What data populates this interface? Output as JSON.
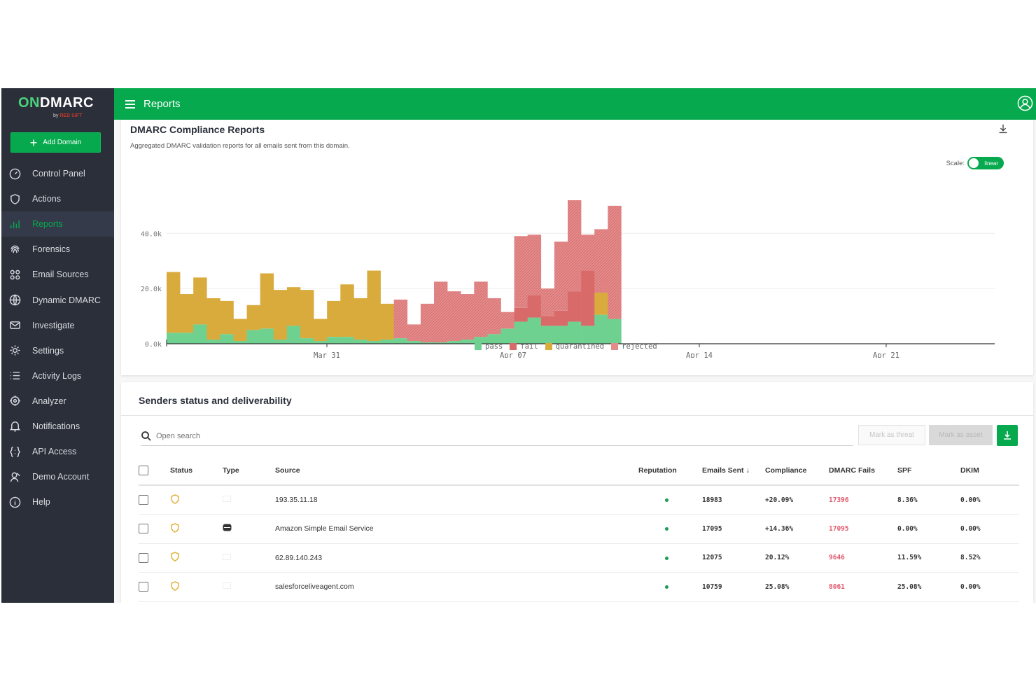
{
  "app": {
    "logo": {
      "on": "ON",
      "rest": "DMARC",
      "by": "by",
      "company": "RED SIFT"
    },
    "add_domain_label": "Add Domain",
    "topbar_title": "Reports"
  },
  "sidebar": {
    "items": [
      {
        "label": "Control Panel",
        "icon": "gauge-icon",
        "active": false
      },
      {
        "label": "Actions",
        "icon": "shield-icon",
        "active": false
      },
      {
        "label": "Reports",
        "icon": "bar-chart-icon",
        "active": true
      },
      {
        "label": "Forensics",
        "icon": "fingerprint-icon",
        "active": false
      },
      {
        "label": "Email Sources",
        "icon": "grid-icon",
        "active": false
      },
      {
        "label": "Dynamic DMARC",
        "icon": "globe-icon",
        "active": false
      },
      {
        "label": "Investigate",
        "icon": "envelope-icon",
        "active": false
      },
      {
        "label": "Settings",
        "icon": "gear-icon",
        "active": false
      },
      {
        "label": "Activity Logs",
        "icon": "list-icon",
        "active": false
      },
      {
        "label": "Analyzer",
        "icon": "target-icon",
        "active": false
      },
      {
        "label": "Notifications",
        "icon": "bell-icon",
        "active": false
      },
      {
        "label": "API Access",
        "icon": "braces-icon",
        "active": false
      },
      {
        "label": "Demo Account",
        "icon": "user-icon",
        "active": false
      },
      {
        "label": "Help",
        "icon": "info-icon",
        "active": false
      }
    ]
  },
  "compliance": {
    "title": "DMARC Compliance Reports",
    "subtitle": "Aggregated DMARC validation reports for all emails sent from this domain.",
    "scale_label": "Scale:",
    "scale_value": "linear"
  },
  "chart_data": {
    "type": "bar",
    "stacked": true,
    "x_tick_labels": [
      "Mar 31",
      "Apr 07",
      "Apr 14",
      "Apr 21"
    ],
    "y_tick_labels": [
      "0.0k",
      "20.0k",
      "40.0k"
    ],
    "ylim": [
      0,
      52000
    ],
    "legend": [
      "pass",
      "fail",
      "quarantined",
      "rejected"
    ],
    "colors": {
      "pass": "#6fd18f",
      "fail": "#d96a6a",
      "quarantined": "#d9aa3c",
      "rejected": "#e48b8b"
    },
    "series": [
      {
        "name": "pass",
        "values": [
          4000,
          4000,
          7000,
          1500,
          3500,
          1000,
          5000,
          5500,
          1500,
          6500,
          2000,
          1000,
          2500,
          2500,
          1500,
          1000,
          1500,
          2000,
          1000,
          500,
          500,
          1000,
          1500,
          2500,
          3500,
          5500,
          8000,
          9500,
          6500,
          6500,
          8000,
          6500,
          10500,
          9000
        ]
      },
      {
        "name": "fail",
        "values": [
          0,
          0,
          0,
          0,
          0,
          0,
          0,
          0,
          0,
          0,
          0,
          0,
          0,
          0,
          0,
          0,
          0,
          0,
          0,
          0,
          0,
          0,
          0,
          0,
          0,
          0,
          5000,
          8000,
          3500,
          5500,
          11000,
          20000,
          0,
          0
        ]
      },
      {
        "name": "quarantined",
        "values": [
          22000,
          14000,
          17000,
          15000,
          12000,
          8000,
          9000,
          20000,
          18000,
          14000,
          17500,
          8000,
          13000,
          19000,
          15000,
          25500,
          13000,
          0,
          0,
          0,
          0,
          0,
          0,
          0,
          0,
          0,
          0,
          0,
          0,
          0,
          0,
          0,
          8000,
          0
        ]
      },
      {
        "name": "rejected",
        "values": [
          0,
          0,
          0,
          0,
          0,
          0,
          0,
          0,
          0,
          0,
          0,
          0,
          0,
          0,
          0,
          0,
          0,
          14000,
          6000,
          14000,
          22000,
          18000,
          16500,
          20000,
          13000,
          6000,
          26000,
          22000,
          10000,
          25000,
          33000,
          13000,
          23000,
          41000
        ]
      }
    ]
  },
  "senders": {
    "title": "Senders status and deliverability",
    "search_placeholder": "Open search",
    "mark_threat_label": "Mark as threat",
    "mark_asset_label": "Mark as asset",
    "columns": {
      "status": "Status",
      "type": "Type",
      "source": "Source",
      "reputation": "Reputation",
      "emails_sent": "Emails Sent",
      "compliance": "Compliance",
      "dmarc_fails": "DMARC Fails",
      "spf": "SPF",
      "dkim": "DKIM"
    },
    "rows": [
      {
        "source": "193.35.11.18",
        "emails_sent": "18983",
        "compliance": "+20.09%",
        "dmarc_fails": "17396",
        "spf": "8.36%",
        "dkim": "0.00%",
        "type_icon": ""
      },
      {
        "source": "Amazon Simple Email Service",
        "emails_sent": "17095",
        "compliance": "+14.36%",
        "dmarc_fails": "17095",
        "spf": "0.00%",
        "dkim": "0.00%",
        "type_icon": "server-icon"
      },
      {
        "source": "62.89.140.243",
        "emails_sent": "12075",
        "compliance": "20.12%",
        "dmarc_fails": "9646",
        "spf": "11.59%",
        "dkim": "8.52%",
        "type_icon": ""
      },
      {
        "source": "salesforceliveagent.com",
        "emails_sent": "10759",
        "compliance": "25.08%",
        "dmarc_fails": "8061",
        "spf": "25.08%",
        "dkim": "0.00%",
        "type_icon": ""
      }
    ]
  }
}
